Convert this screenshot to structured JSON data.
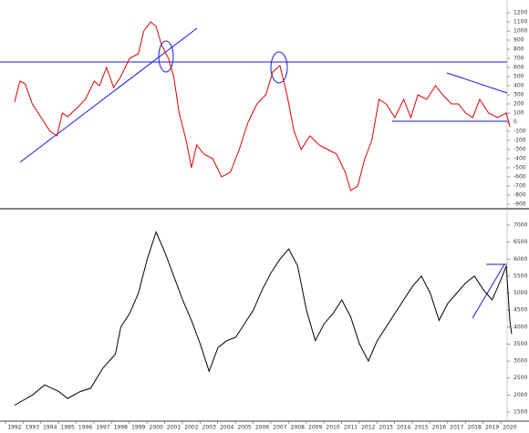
{
  "chart_data": [
    {
      "type": "line",
      "color": "#e00000",
      "x": [
        1992.0,
        1992.3,
        1992.6,
        1993.0,
        1993.5,
        1994.0,
        1994.4,
        1994.7,
        1995.0,
        1995.5,
        1996.0,
        1996.5,
        1996.8,
        1997.2,
        1997.6,
        1998.0,
        1998.5,
        1999.0,
        1999.3,
        1999.7,
        2000.0,
        2000.3,
        2000.7,
        2001.0,
        2001.3,
        2001.7,
        2002.0,
        2002.3,
        2002.7,
        2003.2,
        2003.7,
        2004.2,
        2004.7,
        2005.2,
        2005.7,
        2006.2,
        2006.6,
        2007.0,
        2007.4,
        2007.8,
        2008.2,
        2008.7,
        2009.2,
        2009.7,
        2010.2,
        2010.7,
        2011.0,
        2011.4,
        2011.8,
        2012.2,
        2012.6,
        2013.0,
        2013.5,
        2014.0,
        2014.4,
        2014.8,
        2015.3,
        2015.8,
        2016.2,
        2016.7,
        2017.1,
        2017.5,
        2017.9,
        2018.3,
        2018.8,
        2019.3,
        2019.8,
        2020.0
      ],
      "values": [
        220,
        450,
        420,
        200,
        50,
        -100,
        -150,
        100,
        60,
        150,
        250,
        450,
        400,
        600,
        380,
        500,
        700,
        750,
        1000,
        1100,
        1050,
        850,
        700,
        500,
        100,
        -200,
        -500,
        -250,
        -350,
        -400,
        -600,
        -550,
        -300,
        0,
        200,
        300,
        550,
        620,
        300,
        -100,
        -300,
        -150,
        -250,
        -300,
        -350,
        -550,
        -750,
        -700,
        -400,
        -200,
        250,
        200,
        50,
        250,
        50,
        300,
        250,
        400,
        300,
        200,
        200,
        100,
        50,
        250,
        100,
        50,
        100,
        -50
      ],
      "xlim": [
        1992,
        2020
      ],
      "ylim": [
        -900,
        1200
      ],
      "yticks": [
        1200,
        1100,
        1000,
        900,
        800,
        700,
        600,
        500,
        400,
        300,
        200,
        100,
        0,
        -100,
        -200,
        -300,
        -400,
        -500,
        -600,
        -700,
        -800,
        -900
      ]
    },
    {
      "type": "line",
      "color": "#000000",
      "x": [
        1992.0,
        1993.0,
        1993.7,
        1994.5,
        1995.0,
        1995.7,
        1996.3,
        1997.0,
        1997.7,
        1998.0,
        1998.5,
        1999.0,
        1999.5,
        2000.0,
        2000.5,
        2001.0,
        2001.5,
        2002.0,
        2002.5,
        2003.0,
        2003.5,
        2004.0,
        2004.5,
        2005.0,
        2005.5,
        2006.0,
        2006.5,
        2007.0,
        2007.5,
        2008.0,
        2008.5,
        2009.0,
        2009.5,
        2010.0,
        2010.5,
        2011.0,
        2011.5,
        2012.0,
        2012.5,
        2013.0,
        2013.5,
        2014.0,
        2014.5,
        2015.0,
        2015.5,
        2016.0,
        2016.5,
        2017.0,
        2017.5,
        2018.0,
        2018.5,
        2019.0,
        2019.5,
        2019.8,
        2020.0,
        2020.1
      ],
      "values": [
        1700,
        2000,
        2300,
        2100,
        1900,
        2100,
        2200,
        2800,
        3200,
        4000,
        4400,
        5000,
        6000,
        6800,
        6200,
        5500,
        4800,
        4200,
        3500,
        2700,
        3400,
        3600,
        3700,
        4100,
        4500,
        5100,
        5600,
        6000,
        6300,
        5800,
        4500,
        3600,
        4100,
        4400,
        4800,
        4300,
        3500,
        3000,
        3600,
        4000,
        4400,
        4800,
        5200,
        5500,
        5000,
        4200,
        4700,
        5000,
        5300,
        5500,
        5100,
        4800,
        5400,
        5800,
        4200,
        3800
      ],
      "xlim": [
        1992,
        2020
      ],
      "ylim": [
        1500,
        7000
      ],
      "yticks": [
        7000,
        6500,
        6000,
        5500,
        5000,
        4500,
        4000,
        3500,
        3000,
        2500,
        2000,
        1500
      ],
      "xticks": [
        {
          "value": 1992,
          "label": "1992"
        },
        {
          "value": 1993,
          "label": "1993"
        },
        {
          "value": 1994,
          "label": "1994"
        },
        {
          "value": 1995,
          "label": "1995"
        },
        {
          "value": 1996,
          "label": "1996"
        },
        {
          "value": 1997,
          "label": "1997"
        },
        {
          "value": 1998,
          "label": "1998"
        },
        {
          "value": 1999,
          "label": "1999"
        },
        {
          "value": 2000,
          "label": "2000"
        },
        {
          "value": 2001,
          "label": "2001"
        },
        {
          "value": 2002,
          "label": "2002"
        },
        {
          "value": 2003,
          "label": "2003"
        },
        {
          "value": 2004,
          "label": "2004"
        },
        {
          "value": 2005,
          "label": "2005"
        },
        {
          "value": 2006,
          "label": "2006"
        },
        {
          "value": 2007,
          "label": "2007"
        },
        {
          "value": 2008,
          "label": "2008"
        },
        {
          "value": 2009,
          "label": "2009"
        },
        {
          "value": 2010,
          "label": "2010"
        },
        {
          "value": 2011,
          "label": "2011"
        },
        {
          "value": 2012,
          "label": "2012"
        },
        {
          "value": 2013,
          "label": "2013"
        },
        {
          "value": 2014,
          "label": "2014"
        },
        {
          "value": 2015,
          "label": "2015"
        },
        {
          "value": 2016,
          "label": "2016"
        },
        {
          "value": 2017,
          "label": "2017"
        },
        {
          "value": 2018,
          "label": "2018"
        },
        {
          "value": 2019,
          "label": "2019"
        },
        {
          "value": 2020,
          "label": "2020"
        }
      ]
    }
  ]
}
